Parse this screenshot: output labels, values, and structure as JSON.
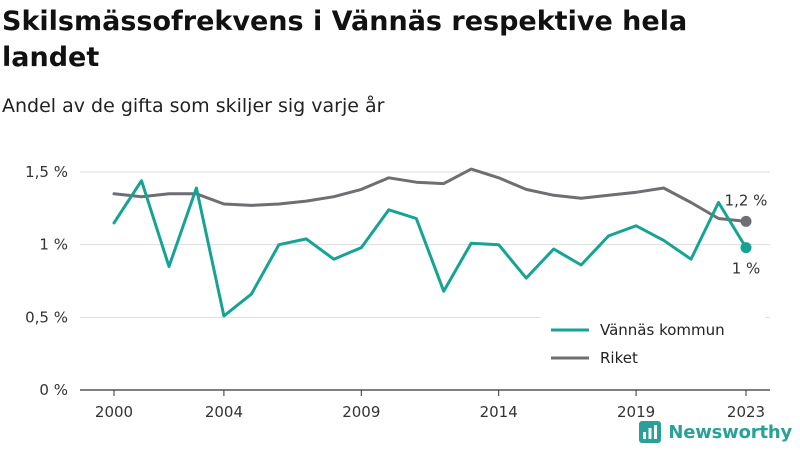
{
  "brand": {
    "name": "Newsworthy",
    "icon": "newsworthy-logo-icon",
    "color": "#2aa198"
  },
  "chart_data": {
    "type": "line",
    "title": "Skilsmässofrekvens i Vännäs respektive hela landet",
    "subtitle": "Andel av de gifta som skiljer sig varje år",
    "x": [
      2000,
      2001,
      2002,
      2003,
      2004,
      2005,
      2006,
      2007,
      2008,
      2009,
      2010,
      2011,
      2012,
      2013,
      2014,
      2015,
      2016,
      2017,
      2018,
      2019,
      2020,
      2021,
      2022,
      2023
    ],
    "x_ticks": [
      2000,
      2004,
      2009,
      2014,
      2019,
      2023
    ],
    "x_tick_labels": [
      "2000",
      "2004",
      "2009",
      "2014",
      "2019",
      "2023"
    ],
    "y_ticks": [
      0,
      0.5,
      1,
      1.5
    ],
    "y_tick_labels": [
      "0 %",
      "0,5 %",
      "1 %",
      "1,5 %"
    ],
    "ylim": [
      0,
      1.5
    ],
    "grid": true,
    "legend_position": "bottom-right",
    "series": [
      {
        "name": "Vännäs kommun",
        "color": "#16a394",
        "end_label": "1 %",
        "values": [
          1.15,
          1.44,
          0.85,
          1.39,
          0.51,
          0.66,
          1.0,
          1.04,
          0.9,
          0.98,
          1.24,
          1.18,
          0.68,
          1.01,
          1.0,
          0.77,
          0.97,
          0.86,
          1.06,
          1.13,
          1.03,
          0.9,
          1.29,
          0.98
        ]
      },
      {
        "name": "Riket",
        "color": "#6e6e73",
        "end_label": "1,2 %",
        "values": [
          1.35,
          1.33,
          1.35,
          1.35,
          1.28,
          1.27,
          1.28,
          1.3,
          1.33,
          1.38,
          1.46,
          1.43,
          1.42,
          1.52,
          1.46,
          1.38,
          1.34,
          1.32,
          1.34,
          1.36,
          1.39,
          1.29,
          1.18,
          1.16
        ]
      }
    ]
  }
}
